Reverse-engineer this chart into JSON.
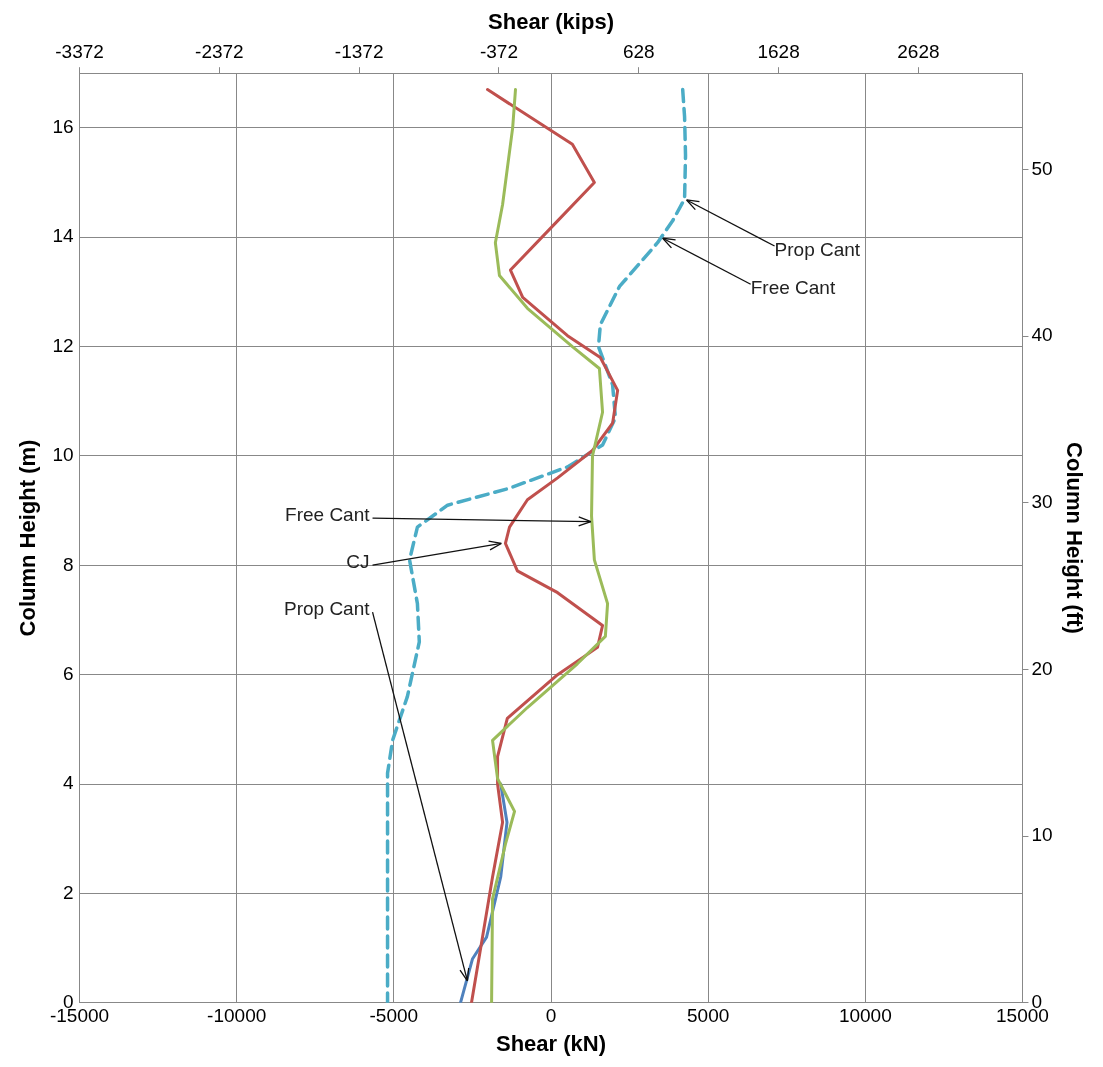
{
  "chart_data": {
    "type": "line",
    "xlabel": "Shear (kN)",
    "x2label": "Shear (kips)",
    "ylabel": "Column Height (m)",
    "y2label": "Column Height (ft)",
    "xlim": [
      -15000,
      15000
    ],
    "xticks": [
      -15000,
      -10000,
      -5000,
      0,
      5000,
      10000,
      15000
    ],
    "x2lim": [
      -3372,
      3372
    ],
    "x2ticks": [
      -3372,
      -2372,
      -1372,
      -372,
      628,
      1628,
      2628
    ],
    "ylim": [
      0,
      17
    ],
    "yticks": [
      0,
      2,
      4,
      6,
      8,
      10,
      12,
      14,
      16
    ],
    "y2lim": [
      0,
      55.77
    ],
    "y2ticks": [
      0,
      10,
      20,
      30,
      40,
      50
    ],
    "grid": true,
    "legend": false,
    "series": [
      {
        "color": "#4bacc6",
        "line_style": "dashed",
        "x": [
          4190,
          4250,
          4280,
          4250,
          3870,
          3390,
          2180,
          1570,
          1510,
          1960,
          2050,
          1640,
          525,
          -1380,
          -3290,
          -4250,
          -4500,
          -4250,
          -4190,
          -4570,
          -5040,
          -5200,
          -5200
        ],
        "values": [
          16.7,
          16.2,
          15.5,
          14.7,
          14.3,
          13.9,
          13.1,
          12.4,
          12,
          11.3,
          10.7,
          10.2,
          9.8,
          9.4,
          9.1,
          8.7,
          8.1,
          7.3,
          6.6,
          5.6,
          4.8,
          4.2,
          0
        ]
      },
      {
        "color": "#4f81bd",
        "line_style": "solid",
        "x": [
          -1600,
          -1400,
          -1600,
          -2050,
          -2500,
          -2880
        ],
        "values": [
          4,
          3.3,
          2.3,
          1.2,
          0.8,
          0
        ]
      },
      {
        "color": "#c0504d",
        "line_style": "solid",
        "x": [
          -2020,
          680,
          1380,
          210,
          -1290,
          -900,
          525,
          1570,
          2120,
          1960,
          1320,
          210,
          -750,
          -1320,
          -1450,
          -1070,
          210,
          1640,
          1480,
          210,
          -1390,
          -1700,
          -1700,
          -1540,
          -1860,
          -2180,
          -2530
        ],
        "values": [
          16.7,
          15.7,
          15,
          14.3,
          13.4,
          12.9,
          12.2,
          11.8,
          11.2,
          10.6,
          10.1,
          9.6,
          9.2,
          8.7,
          8.4,
          7.9,
          7.5,
          6.9,
          6.5,
          6,
          5.2,
          4.5,
          4,
          3.3,
          2.3,
          1.2,
          0
        ]
      },
      {
        "color": "#9bbb59",
        "line_style": "solid",
        "x": [
          -1130,
          -1220,
          -1540,
          -1770,
          -1640,
          -750,
          680,
          1540,
          1640,
          1320,
          1290,
          1380,
          1800,
          1730,
          840,
          -750,
          -1860,
          -1700,
          -1160,
          -1450,
          -1860,
          -1890
        ],
        "values": [
          16.7,
          16,
          14.6,
          13.9,
          13.3,
          12.7,
          12,
          11.6,
          10.8,
          10,
          8.9,
          8.1,
          7.3,
          6.7,
          6.2,
          5.4,
          4.8,
          4.1,
          3.5,
          2.9,
          1.9,
          0
        ]
      }
    ],
    "annotations": [
      {
        "text": "Prop Cant",
        "x": 4250,
        "y": 14.7
      },
      {
        "text": "Free Cant",
        "x": 3490,
        "y": 14
      },
      {
        "text": "Free Cant",
        "x": 1270,
        "y": 8.8
      },
      {
        "text": "CJ",
        "x": -1580,
        "y": 8.4
      },
      {
        "text": "Prop Cant",
        "x": -2660,
        "y": 0.4
      }
    ]
  }
}
